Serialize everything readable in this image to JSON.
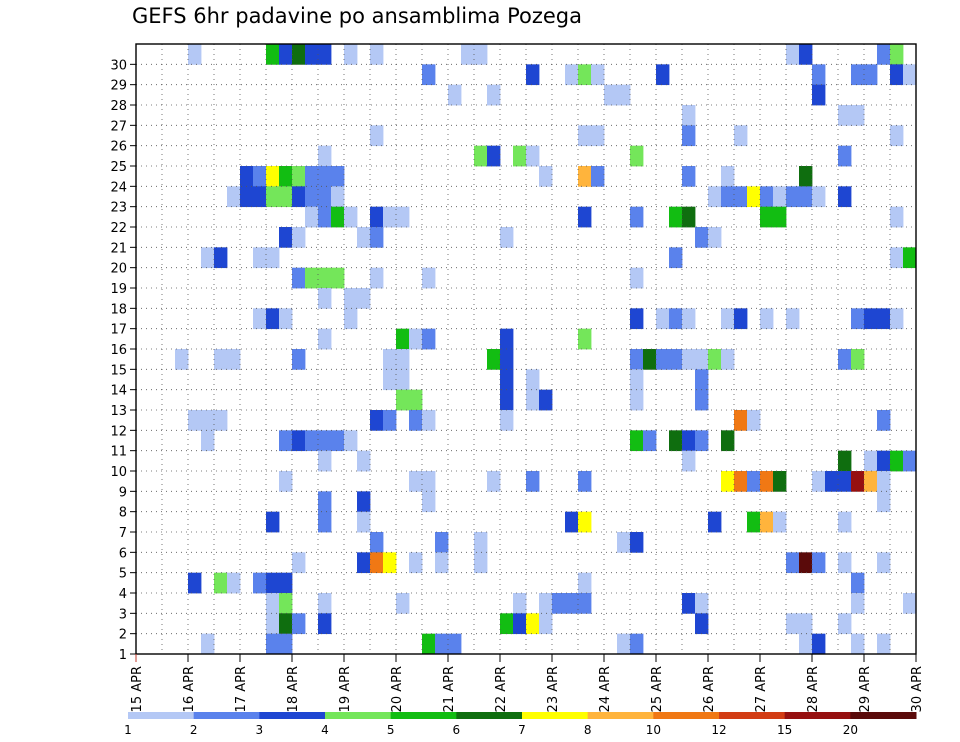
{
  "chart_data": {
    "type": "heatmap",
    "title": "GEFS 6hr padavine po ansamblima Pozega",
    "xlabel": "",
    "ylabel": "",
    "x_ticks": [
      "15 APR",
      "16 APR",
      "17 APR",
      "18 APR",
      "19 APR",
      "20 APR",
      "21 APR",
      "22 APR",
      "23 APR",
      "24 APR",
      "25 APR",
      "26 APR",
      "27 APR",
      "28 APR",
      "29 APR",
      "30 APR"
    ],
    "y_ticks": [
      1,
      2,
      3,
      4,
      5,
      6,
      7,
      8,
      9,
      10,
      11,
      12,
      13,
      14,
      15,
      16,
      17,
      18,
      19,
      20,
      21,
      22,
      23,
      24,
      25,
      26,
      27,
      28,
      29,
      30
    ],
    "xlim": [
      0,
      60
    ],
    "ylim": [
      1,
      30
    ],
    "grid": true,
    "colorbar": {
      "labels": [
        "1",
        "2",
        "3",
        "4",
        "5",
        "6",
        "7",
        "8",
        "10",
        "12",
        "15",
        "20"
      ],
      "colors": [
        "#b4c8f5",
        "#5a82ec",
        "#1e46d2",
        "#74e65a",
        "#12bd12",
        "#0f6e0f",
        "#ffff00",
        "#ffb43c",
        "#f07814",
        "#d23c14",
        "#961010",
        "#5a0a0a"
      ]
    },
    "cells": [
      [
        30,
        4,
        0
      ],
      [
        30,
        10,
        4
      ],
      [
        30,
        11,
        2
      ],
      [
        30,
        12,
        5
      ],
      [
        30,
        13,
        2
      ],
      [
        30,
        14,
        2
      ],
      [
        30,
        16,
        0
      ],
      [
        30,
        18,
        0
      ],
      [
        30,
        25,
        0
      ],
      [
        30,
        26,
        0
      ],
      [
        30,
        50,
        0
      ],
      [
        30,
        51,
        2
      ],
      [
        30,
        57,
        1
      ],
      [
        30,
        58,
        3
      ],
      [
        29,
        22,
        1
      ],
      [
        29,
        30,
        2
      ],
      [
        29,
        33,
        0
      ],
      [
        29,
        34,
        3
      ],
      [
        29,
        35,
        0
      ],
      [
        29,
        40,
        2
      ],
      [
        29,
        52,
        1
      ],
      [
        29,
        55,
        1
      ],
      [
        29,
        56,
        1
      ],
      [
        29,
        58,
        2
      ],
      [
        29,
        59,
        0
      ],
      [
        28,
        24,
        0
      ],
      [
        28,
        27,
        0
      ],
      [
        28,
        36,
        0
      ],
      [
        28,
        37,
        0
      ],
      [
        28,
        52,
        2
      ],
      [
        27,
        42,
        0
      ],
      [
        27,
        54,
        0
      ],
      [
        27,
        55,
        0
      ],
      [
        26,
        18,
        0
      ],
      [
        26,
        34,
        0
      ],
      [
        26,
        35,
        0
      ],
      [
        26,
        42,
        1
      ],
      [
        26,
        46,
        0
      ],
      [
        26,
        58,
        0
      ],
      [
        25,
        14,
        0
      ],
      [
        25,
        26,
        3
      ],
      [
        25,
        27,
        2
      ],
      [
        25,
        29,
        3
      ],
      [
        25,
        30,
        0
      ],
      [
        25,
        38,
        3
      ],
      [
        25,
        54,
        1
      ],
      [
        24,
        8,
        2
      ],
      [
        24,
        9,
        1
      ],
      [
        24,
        10,
        6
      ],
      [
        24,
        11,
        4
      ],
      [
        24,
        12,
        3
      ],
      [
        24,
        13,
        1
      ],
      [
        24,
        14,
        1
      ],
      [
        24,
        15,
        1
      ],
      [
        24,
        31,
        0
      ],
      [
        24,
        34,
        7
      ],
      [
        24,
        35,
        1
      ],
      [
        24,
        42,
        1
      ],
      [
        24,
        45,
        0
      ],
      [
        24,
        51,
        5
      ],
      [
        23,
        7,
        0
      ],
      [
        23,
        8,
        2
      ],
      [
        23,
        9,
        2
      ],
      [
        23,
        10,
        3
      ],
      [
        23,
        11,
        3
      ],
      [
        23,
        12,
        2
      ],
      [
        23,
        13,
        1
      ],
      [
        23,
        14,
        1
      ],
      [
        23,
        15,
        0
      ],
      [
        23,
        44,
        0
      ],
      [
        23,
        45,
        1
      ],
      [
        23,
        46,
        1
      ],
      [
        23,
        47,
        6
      ],
      [
        23,
        48,
        1
      ],
      [
        23,
        49,
        0
      ],
      [
        23,
        50,
        1
      ],
      [
        23,
        51,
        1
      ],
      [
        23,
        52,
        0
      ],
      [
        23,
        54,
        2
      ],
      [
        22,
        13,
        0
      ],
      [
        22,
        14,
        1
      ],
      [
        22,
        15,
        4
      ],
      [
        22,
        16,
        0
      ],
      [
        22,
        18,
        2
      ],
      [
        22,
        19,
        0
      ],
      [
        22,
        20,
        0
      ],
      [
        22,
        34,
        2
      ],
      [
        22,
        38,
        1
      ],
      [
        22,
        41,
        4
      ],
      [
        22,
        42,
        5
      ],
      [
        22,
        48,
        4
      ],
      [
        22,
        49,
        4
      ],
      [
        22,
        58,
        0
      ],
      [
        21,
        11,
        2
      ],
      [
        21,
        12,
        0
      ],
      [
        21,
        17,
        0
      ],
      [
        21,
        18,
        1
      ],
      [
        21,
        28,
        0
      ],
      [
        21,
        43,
        1
      ],
      [
        21,
        44,
        0
      ],
      [
        20,
        5,
        0
      ],
      [
        20,
        6,
        2
      ],
      [
        20,
        9,
        0
      ],
      [
        20,
        10,
        0
      ],
      [
        20,
        41,
        1
      ],
      [
        20,
        58,
        0
      ],
      [
        20,
        59,
        4
      ],
      [
        19,
        12,
        1
      ],
      [
        19,
        13,
        3
      ],
      [
        19,
        14,
        3
      ],
      [
        19,
        15,
        3
      ],
      [
        19,
        18,
        0
      ],
      [
        19,
        22,
        0
      ],
      [
        19,
        38,
        0
      ],
      [
        18,
        14,
        0
      ],
      [
        18,
        16,
        0
      ],
      [
        18,
        17,
        0
      ],
      [
        17,
        9,
        0
      ],
      [
        17,
        10,
        2
      ],
      [
        17,
        11,
        0
      ],
      [
        17,
        16,
        0
      ],
      [
        17,
        38,
        2
      ],
      [
        17,
        40,
        0
      ],
      [
        17,
        41,
        1
      ],
      [
        17,
        42,
        0
      ],
      [
        17,
        45,
        0
      ],
      [
        17,
        46,
        2
      ],
      [
        17,
        48,
        0
      ],
      [
        17,
        50,
        0
      ],
      [
        17,
        55,
        1
      ],
      [
        17,
        56,
        2
      ],
      [
        17,
        57,
        2
      ],
      [
        17,
        58,
        0
      ],
      [
        16,
        14,
        0
      ],
      [
        16,
        20,
        4
      ],
      [
        16,
        21,
        0
      ],
      [
        16,
        22,
        1
      ],
      [
        16,
        28,
        2
      ],
      [
        16,
        34,
        3
      ],
      [
        15,
        3,
        0
      ],
      [
        15,
        6,
        0
      ],
      [
        15,
        7,
        0
      ],
      [
        15,
        12,
        1
      ],
      [
        15,
        19,
        0
      ],
      [
        15,
        20,
        0
      ],
      [
        15,
        27,
        4
      ],
      [
        15,
        28,
        2
      ],
      [
        15,
        38,
        1
      ],
      [
        15,
        39,
        5
      ],
      [
        15,
        40,
        1
      ],
      [
        15,
        41,
        1
      ],
      [
        15,
        42,
        0
      ],
      [
        15,
        43,
        0
      ],
      [
        15,
        44,
        3
      ],
      [
        15,
        45,
        0
      ],
      [
        15,
        54,
        1
      ],
      [
        15,
        55,
        3
      ],
      [
        14,
        19,
        0
      ],
      [
        14,
        20,
        0
      ],
      [
        14,
        28,
        2
      ],
      [
        14,
        30,
        0
      ],
      [
        14,
        38,
        0
      ],
      [
        14,
        43,
        1
      ],
      [
        13,
        20,
        3
      ],
      [
        13,
        21,
        3
      ],
      [
        13,
        28,
        2
      ],
      [
        13,
        30,
        0
      ],
      [
        13,
        31,
        2
      ],
      [
        13,
        38,
        0
      ],
      [
        13,
        43,
        1
      ],
      [
        12,
        4,
        0
      ],
      [
        12,
        5,
        0
      ],
      [
        12,
        6,
        0
      ],
      [
        12,
        18,
        2
      ],
      [
        12,
        19,
        1
      ],
      [
        12,
        21,
        1
      ],
      [
        12,
        22,
        0
      ],
      [
        12,
        28,
        0
      ],
      [
        12,
        46,
        8
      ],
      [
        12,
        47,
        0
      ],
      [
        12,
        57,
        1
      ],
      [
        11,
        5,
        0
      ],
      [
        11,
        11,
        1
      ],
      [
        11,
        12,
        2
      ],
      [
        11,
        13,
        1
      ],
      [
        11,
        14,
        1
      ],
      [
        11,
        15,
        1
      ],
      [
        11,
        16,
        0
      ],
      [
        11,
        38,
        4
      ],
      [
        11,
        39,
        1
      ],
      [
        11,
        41,
        5
      ],
      [
        11,
        42,
        2
      ],
      [
        11,
        43,
        1
      ],
      [
        11,
        45,
        5
      ],
      [
        10,
        14,
        0
      ],
      [
        10,
        17,
        0
      ],
      [
        10,
        42,
        0
      ],
      [
        10,
        54,
        5
      ],
      [
        10,
        56,
        0
      ],
      [
        10,
        57,
        2
      ],
      [
        10,
        58,
        4
      ],
      [
        10,
        59,
        1
      ],
      [
        9,
        11,
        0
      ],
      [
        9,
        21,
        0
      ],
      [
        9,
        22,
        0
      ],
      [
        9,
        27,
        0
      ],
      [
        9,
        30,
        1
      ],
      [
        9,
        34,
        1
      ],
      [
        9,
        45,
        6
      ],
      [
        9,
        46,
        8
      ],
      [
        9,
        47,
        1
      ],
      [
        9,
        48,
        8
      ],
      [
        9,
        49,
        5
      ],
      [
        9,
        52,
        0
      ],
      [
        9,
        53,
        2
      ],
      [
        9,
        54,
        2
      ],
      [
        9,
        55,
        10
      ],
      [
        9,
        56,
        7
      ],
      [
        9,
        57,
        0
      ],
      [
        8,
        14,
        1
      ],
      [
        8,
        17,
        2
      ],
      [
        8,
        22,
        0
      ],
      [
        8,
        57,
        0
      ],
      [
        7,
        10,
        2
      ],
      [
        7,
        14,
        1
      ],
      [
        7,
        17,
        0
      ],
      [
        7,
        33,
        2
      ],
      [
        7,
        34,
        6
      ],
      [
        7,
        44,
        2
      ],
      [
        7,
        47,
        4
      ],
      [
        7,
        48,
        7
      ],
      [
        7,
        49,
        0
      ],
      [
        7,
        54,
        0
      ],
      [
        6,
        18,
        1
      ],
      [
        6,
        23,
        1
      ],
      [
        6,
        26,
        0
      ],
      [
        6,
        37,
        0
      ],
      [
        6,
        38,
        2
      ],
      [
        5,
        12,
        0
      ],
      [
        5,
        17,
        2
      ],
      [
        5,
        18,
        8
      ],
      [
        5,
        19,
        6
      ],
      [
        5,
        21,
        0
      ],
      [
        5,
        23,
        0
      ],
      [
        5,
        26,
        0
      ],
      [
        5,
        50,
        1
      ],
      [
        5,
        51,
        11
      ],
      [
        5,
        52,
        1
      ],
      [
        5,
        54,
        0
      ],
      [
        5,
        57,
        0
      ],
      [
        4,
        4,
        2
      ],
      [
        4,
        6,
        3
      ],
      [
        4,
        7,
        0
      ],
      [
        4,
        9,
        1
      ],
      [
        4,
        10,
        2
      ],
      [
        4,
        11,
        2
      ],
      [
        4,
        34,
        0
      ],
      [
        4,
        55,
        1
      ],
      [
        3,
        10,
        0
      ],
      [
        3,
        11,
        3
      ],
      [
        3,
        14,
        0
      ],
      [
        3,
        20,
        0
      ],
      [
        3,
        29,
        0
      ],
      [
        3,
        31,
        0
      ],
      [
        3,
        32,
        1
      ],
      [
        3,
        33,
        1
      ],
      [
        3,
        34,
        1
      ],
      [
        3,
        42,
        2
      ],
      [
        3,
        43,
        0
      ],
      [
        3,
        55,
        0
      ],
      [
        3,
        59,
        0
      ],
      [
        2,
        10,
        0
      ],
      [
        2,
        11,
        5
      ],
      [
        2,
        12,
        1
      ],
      [
        2,
        14,
        2
      ],
      [
        2,
        28,
        4
      ],
      [
        2,
        29,
        2
      ],
      [
        2,
        30,
        6
      ],
      [
        2,
        31,
        0
      ],
      [
        2,
        43,
        2
      ],
      [
        2,
        50,
        0
      ],
      [
        2,
        51,
        0
      ],
      [
        2,
        54,
        0
      ],
      [
        1,
        5,
        0
      ],
      [
        1,
        10,
        1
      ],
      [
        1,
        11,
        1
      ],
      [
        1,
        22,
        4
      ],
      [
        1,
        23,
        1
      ],
      [
        1,
        24,
        1
      ],
      [
        1,
        37,
        0
      ],
      [
        1,
        38,
        1
      ],
      [
        1,
        51,
        0
      ],
      [
        1,
        52,
        2
      ],
      [
        1,
        55,
        0
      ],
      [
        1,
        57,
        0
      ]
    ]
  }
}
